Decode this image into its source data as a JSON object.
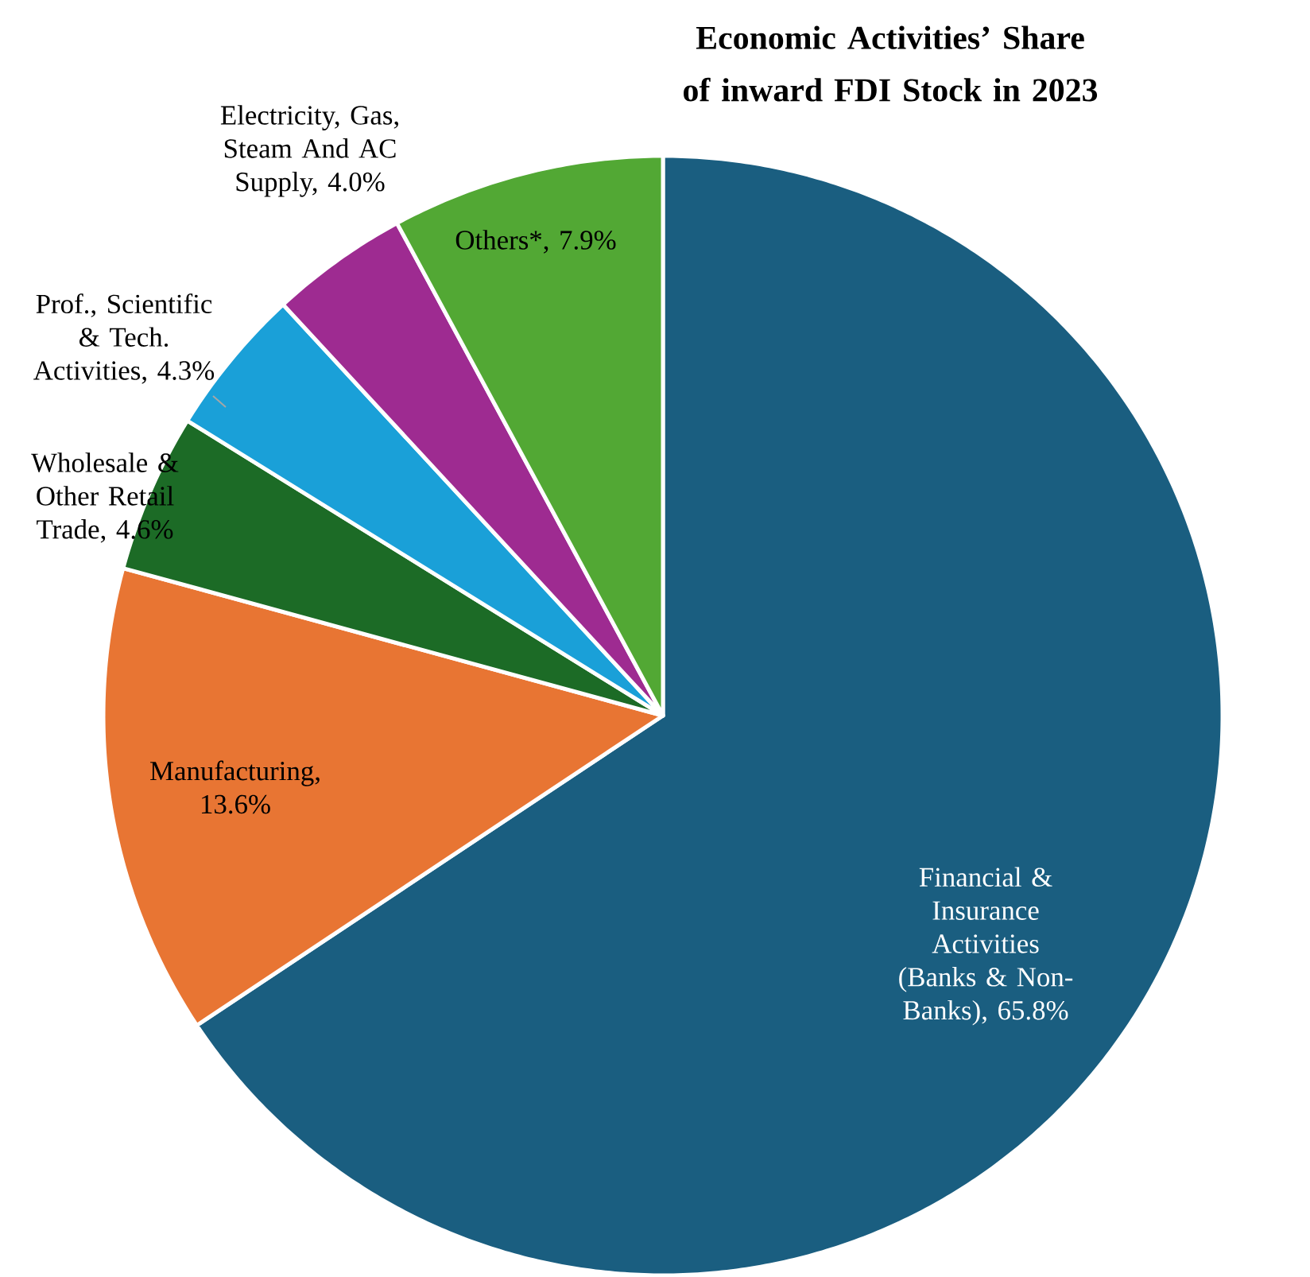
{
  "chart_data": {
    "type": "pie",
    "title": "Economic Activities’ Share of inward FDI Stock in 2023",
    "categories": [
      "Financial & Insurance Activities (Banks & Non-Banks), 65.8%",
      "Manufacturing, 13.6%",
      "Wholesale & Other Retail Trade, 4.6%",
      "Prof., Scientific & Tech. Activities, 4.3%",
      "Electricity, Gas, Steam And AC Supply, 4.0%",
      "Others*, 7.9%"
    ],
    "values": [
      65.8,
      13.6,
      4.6,
      4.3,
      4.0,
      7.9
    ],
    "colors": [
      "#1a5e80",
      "#e87533",
      "#1c6b26",
      "#1aa0d8",
      "#9e2b91",
      "#52a834"
    ]
  }
}
